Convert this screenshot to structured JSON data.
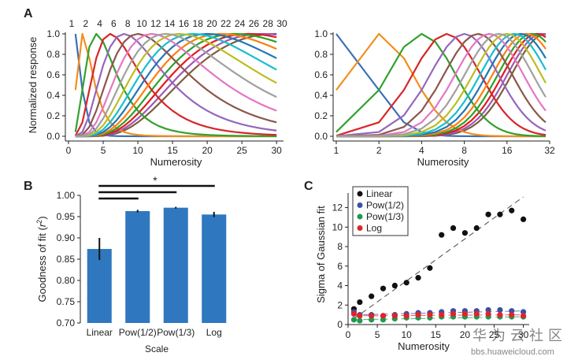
{
  "panels": {
    "a": "A",
    "b": "B",
    "c": "C"
  },
  "watermark": {
    "cn": "华为云社区",
    "url": "bbs.huaweicloud.com"
  },
  "chart_data": [
    {
      "id": "A-left",
      "type": "line",
      "xlabel": "Numerosity",
      "ylabel": "Normalized response",
      "xlim": [
        0,
        31
      ],
      "ylim": [
        0,
        1
      ],
      "xticks": [
        0,
        5,
        10,
        15,
        20,
        25,
        30
      ],
      "yticks": [
        0.0,
        0.2,
        0.4,
        0.6,
        0.8,
        1.0
      ],
      "ytick_labels": [
        "0.0",
        "0.2",
        "0.4",
        "0.6",
        "0.8",
        "1.0"
      ],
      "x_sampling": [
        1,
        30
      ],
      "preferred_numerosities": [
        1,
        2,
        4,
        6,
        8,
        10,
        12,
        14,
        16,
        18,
        20,
        22,
        24,
        26,
        28,
        30
      ],
      "legend_labels": [
        "1",
        "2",
        "4",
        "6",
        "8",
        "10",
        "12",
        "14",
        "16",
        "18",
        "20",
        "22",
        "24",
        "26",
        "28",
        "30"
      ],
      "colors": [
        "#3b6fb6",
        "#f28e1c",
        "#33a02c",
        "#d62728",
        "#9467bd",
        "#8c564b",
        "#e377c2",
        "#a0a0a0",
        "#bcbd22",
        "#17becf",
        "#1f77b4",
        "#ff7f0e",
        "#2ca02c",
        "#e31a1c",
        "#9b59b6",
        "#7f5c3c"
      ],
      "tuning_sigma_log": 0.55
    },
    {
      "id": "A-right",
      "type": "line",
      "xlabel": "Numerosity",
      "ylabel": "",
      "xscale": "log2",
      "xlim": [
        1,
        32
      ],
      "ylim": [
        0,
        1
      ],
      "xticks": [
        1,
        2,
        4,
        8,
        16,
        32
      ],
      "xtick_labels": [
        "1",
        "2",
        "4",
        "8",
        "16",
        "32"
      ],
      "yticks": [
        0.0,
        0.2,
        0.4,
        0.6,
        0.8,
        1.0
      ],
      "ytick_labels": [
        "0.0",
        "0.2",
        "0.4",
        "0.6",
        "0.8",
        "1.0"
      ],
      "x_sampling": [
        1,
        30
      ],
      "preferred_numerosities": [
        1,
        2,
        4,
        6,
        8,
        10,
        12,
        14,
        16,
        18,
        20,
        22,
        24,
        26,
        28,
        30
      ],
      "colors": [
        "#3b6fb6",
        "#f28e1c",
        "#33a02c",
        "#d62728",
        "#9467bd",
        "#8c564b",
        "#e377c2",
        "#a0a0a0",
        "#bcbd22",
        "#17becf",
        "#1f77b4",
        "#ff7f0e",
        "#2ca02c",
        "#e31a1c",
        "#9b59b6",
        "#7f5c3c"
      ],
      "tuning_sigma_log": 0.55
    },
    {
      "id": "B",
      "type": "bar",
      "categories": [
        "Linear",
        "Pow(1/2)",
        "Pow(1/3)",
        "Log"
      ],
      "values": [
        0.874,
        0.963,
        0.971,
        0.955
      ],
      "errors": [
        0.026,
        0.003,
        0.002,
        0.006
      ],
      "xlabel": "Scale",
      "ylabel_prefix": "Goodness of fit (",
      "ylabel_var": "r",
      "ylabel_sup": "2",
      "ylabel_suffix": ")",
      "ylim": [
        0.7,
        1.0
      ],
      "yticks": [
        0.7,
        0.75,
        0.8,
        0.85,
        0.9,
        0.95,
        1.0
      ],
      "ytick_labels": [
        "0.70",
        "0.75",
        "0.80",
        "0.85",
        "0.90",
        "0.95",
        "1.00"
      ],
      "bar_color": "#2f78bf",
      "significance": {
        "comparisons": [
          [
            0,
            1
          ],
          [
            0,
            2
          ],
          [
            0,
            3
          ]
        ],
        "label": "*"
      }
    },
    {
      "id": "C",
      "type": "scatter",
      "xlabel": "Numerosity",
      "ylabel": "Sigma of Gaussian fit",
      "xlim": [
        0,
        31
      ],
      "ylim": [
        0,
        13.5
      ],
      "xticks": [
        0,
        5,
        10,
        15,
        20,
        25,
        30
      ],
      "yticks": [
        0,
        2,
        4,
        6,
        8,
        10,
        12
      ],
      "x": [
        1,
        2,
        4,
        6,
        8,
        10,
        12,
        14,
        16,
        18,
        20,
        22,
        24,
        26,
        28,
        30
      ],
      "series": [
        {
          "name": "Linear",
          "color": "#111111",
          "values": [
            1.6,
            2.3,
            2.9,
            3.7,
            4.0,
            4.3,
            4.8,
            5.8,
            9.2,
            9.9,
            9.4,
            9.9,
            11.3,
            11.3,
            11.7,
            10.8
          ],
          "fit": [
            0.6,
            13.1
          ]
        },
        {
          "name": "Pow(1/2)",
          "color": "#3c4fa3",
          "values": [
            1.3,
            1.0,
            1.0,
            0.9,
            1.0,
            1.1,
            1.2,
            1.2,
            1.3,
            1.4,
            1.4,
            1.4,
            1.5,
            1.5,
            1.4,
            1.3
          ],
          "fit": [
            1.0,
            1.4
          ]
        },
        {
          "name": "Pow(1/3)",
          "color": "#1e9a4f",
          "values": [
            0.5,
            0.4,
            0.5,
            0.5,
            0.6,
            0.7,
            0.7,
            0.7,
            0.8,
            0.8,
            0.8,
            0.8,
            0.8,
            0.8,
            0.8,
            0.8
          ],
          "fit": [
            0.5,
            0.8
          ]
        },
        {
          "name": "Log",
          "color": "#e0232a",
          "values": [
            1.1,
            0.9,
            0.9,
            0.9,
            0.9,
            0.9,
            1.0,
            1.0,
            1.0,
            1.1,
            1.1,
            1.1,
            1.1,
            1.0,
            1.0,
            0.9
          ],
          "fit": [
            0.9,
            1.0
          ]
        }
      ],
      "legend_position": "top-left"
    }
  ]
}
